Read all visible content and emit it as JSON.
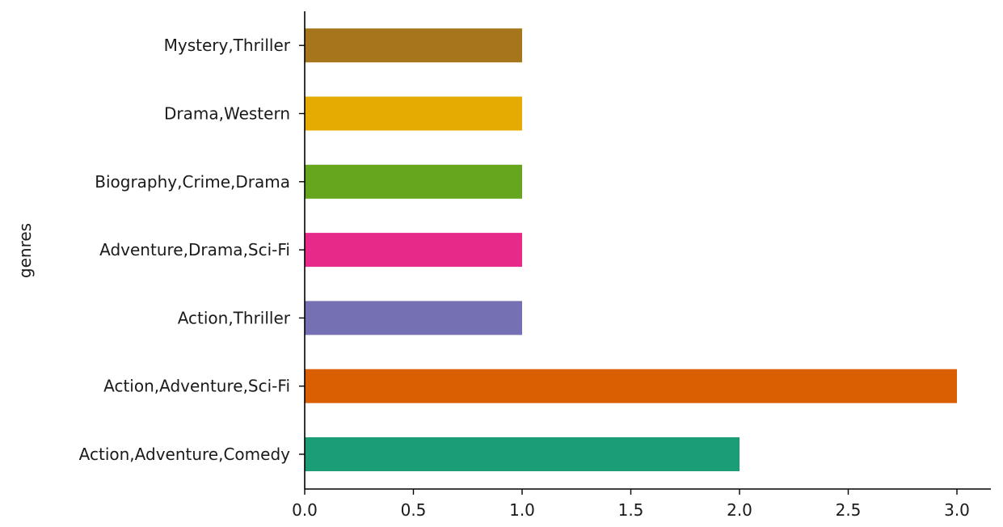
{
  "chart_data": {
    "type": "bar",
    "orientation": "horizontal",
    "title": "",
    "xlabel": "",
    "ylabel": "genres",
    "categories": [
      "Action,Adventure,Comedy",
      "Action,Adventure,Sci-Fi",
      "Action,Thriller",
      "Adventure,Drama,Sci-Fi",
      "Biography,Crime,Drama",
      "Drama,Western",
      "Mystery,Thriller"
    ],
    "values": [
      2,
      3,
      1,
      1,
      1,
      1,
      1
    ],
    "colors": [
      "#1b9e77",
      "#d95f02",
      "#7570b3",
      "#e7298a",
      "#66a61e",
      "#e6ab02",
      "#a6761d"
    ],
    "xlim": [
      0,
      3.15
    ],
    "xticks": [
      "0.0",
      "0.5",
      "1.0",
      "1.5",
      "2.0",
      "2.5",
      "3.0"
    ],
    "grid": false,
    "legend": "none"
  }
}
